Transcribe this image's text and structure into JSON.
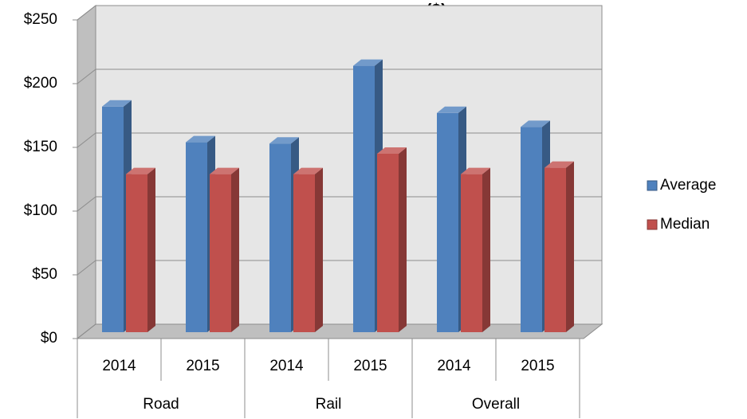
{
  "chart_data": {
    "type": "bar3d",
    "title": "пересечения границы ($)",
    "categories": [
      "2014",
      "2015",
      "2014",
      "2015",
      "2014",
      "2015"
    ],
    "groups": [
      "Road",
      "Rail",
      "Overall"
    ],
    "series": [
      {
        "name": "Average",
        "color": "#4f81bd",
        "values": [
          177,
          149,
          148,
          209,
          172,
          161
        ]
      },
      {
        "name": "Median",
        "color": "#c0504d",
        "values": [
          124,
          124,
          124,
          140,
          124,
          129
        ]
      }
    ],
    "ylim": [
      0,
      250
    ],
    "yticks": [
      {
        "value": 0,
        "label": "$0"
      },
      {
        "value": 50,
        "label": "$50"
      },
      {
        "value": 100,
        "label": "$100"
      },
      {
        "value": 150,
        "label": "$150"
      },
      {
        "value": 200,
        "label": "$200"
      },
      {
        "value": 250,
        "label": "$250"
      }
    ],
    "grid": true,
    "legend": "right"
  }
}
